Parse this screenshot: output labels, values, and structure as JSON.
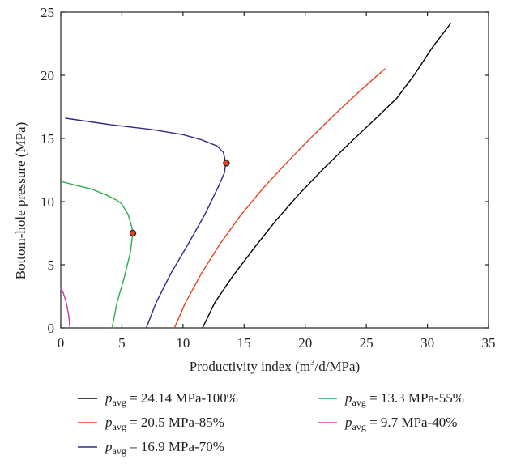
{
  "chart_data": {
    "type": "line",
    "xlabel": "Productivity index (m",
    "xlabel_sup": "3",
    "xlabel_tail": "/d/MPa)",
    "ylabel": "Bottom-hole pressure (MPa)",
    "xlim": [
      0,
      35
    ],
    "ylim": [
      0,
      25
    ],
    "xticks": [
      "0",
      "5",
      "10",
      "15",
      "20",
      "25",
      "30",
      "35"
    ],
    "yticks": [
      "0",
      "5",
      "10",
      "15",
      "20",
      "25"
    ],
    "grid": false,
    "legend_position": "bottom",
    "series": [
      {
        "name": "p_avg = 24.14 MPa-100%",
        "legend_symbol": "p",
        "legend_sub": "avg",
        "legend_rest": " = 24.14 MPa-100%",
        "color": "#000000",
        "points": [
          [
            11.6,
            0
          ],
          [
            12.6,
            2
          ],
          [
            14.0,
            4
          ],
          [
            15.8,
            6.3
          ],
          [
            17.6,
            8.5
          ],
          [
            19.5,
            10.6
          ],
          [
            21.5,
            12.6
          ],
          [
            23.6,
            14.6
          ],
          [
            25.8,
            16.6
          ],
          [
            27.5,
            18.2
          ],
          [
            28.9,
            20.0
          ],
          [
            30.4,
            22.2
          ],
          [
            31.9,
            24.1
          ]
        ]
      },
      {
        "name": "p_avg = 20.5 MPa-85%",
        "legend_symbol": "p",
        "legend_sub": "avg",
        "legend_rest": " = 20.5 MPa-85%",
        "color": "#e8401c",
        "points": [
          [
            9.3,
            0
          ],
          [
            10.2,
            2
          ],
          [
            11.5,
            4.3
          ],
          [
            13.0,
            6.6
          ],
          [
            14.7,
            8.9
          ],
          [
            16.5,
            11.0
          ],
          [
            18.4,
            13.0
          ],
          [
            20.3,
            14.9
          ],
          [
            22.3,
            16.8
          ],
          [
            24.3,
            18.6
          ],
          [
            26.5,
            20.5
          ]
        ]
      },
      {
        "name": "p_avg = 16.9 MPa-70%",
        "legend_symbol": "p",
        "legend_sub": "avg",
        "legend_rest": " = 16.9 MPa-70%",
        "color": "#2e2a86",
        "points": [
          [
            7.0,
            0
          ],
          [
            7.8,
            2
          ],
          [
            9.0,
            4.3
          ],
          [
            10.4,
            6.6
          ],
          [
            11.8,
            9.0
          ],
          [
            12.9,
            11.2
          ],
          [
            13.4,
            12.3
          ],
          [
            13.5,
            13.1
          ],
          [
            13.3,
            13.9
          ],
          [
            12.8,
            14.4
          ],
          [
            11.5,
            14.9
          ],
          [
            10.0,
            15.3
          ],
          [
            7.5,
            15.7
          ],
          [
            4.0,
            16.1
          ],
          [
            0.4,
            16.6
          ]
        ]
      },
      {
        "name": "p_avg = 13.3 MPa-55%",
        "legend_symbol": "p",
        "legend_sub": "avg",
        "legend_rest": " = 13.3 MPa-55%",
        "color": "#2dad4a",
        "points": [
          [
            4.2,
            0
          ],
          [
            4.6,
            2
          ],
          [
            5.2,
            4
          ],
          [
            5.7,
            6
          ],
          [
            5.9,
            7.6
          ],
          [
            5.7,
            8.4
          ],
          [
            5.5,
            9.0
          ],
          [
            5.0,
            9.8
          ],
          [
            4.6,
            10.1
          ],
          [
            3.8,
            10.5
          ],
          [
            2.5,
            11.0
          ],
          [
            1.2,
            11.3
          ],
          [
            0,
            11.6
          ]
        ]
      },
      {
        "name": "p_avg = 9.7 MPa-40%",
        "legend_symbol": "p",
        "legend_sub": "avg",
        "legend_rest": " = 9.7 MPa-40%",
        "color": "#c93aa6",
        "points": [
          [
            0.75,
            0
          ],
          [
            0.65,
            1
          ],
          [
            0.45,
            2
          ],
          [
            0.2,
            2.8
          ],
          [
            0,
            3.1
          ]
        ]
      }
    ],
    "markers": [
      {
        "x": 13.55,
        "y": 13.05,
        "fill": "#e8401c",
        "stroke": "#222222"
      },
      {
        "x": 5.9,
        "y": 7.5,
        "fill": "#e8401c",
        "stroke": "#222222"
      }
    ]
  }
}
